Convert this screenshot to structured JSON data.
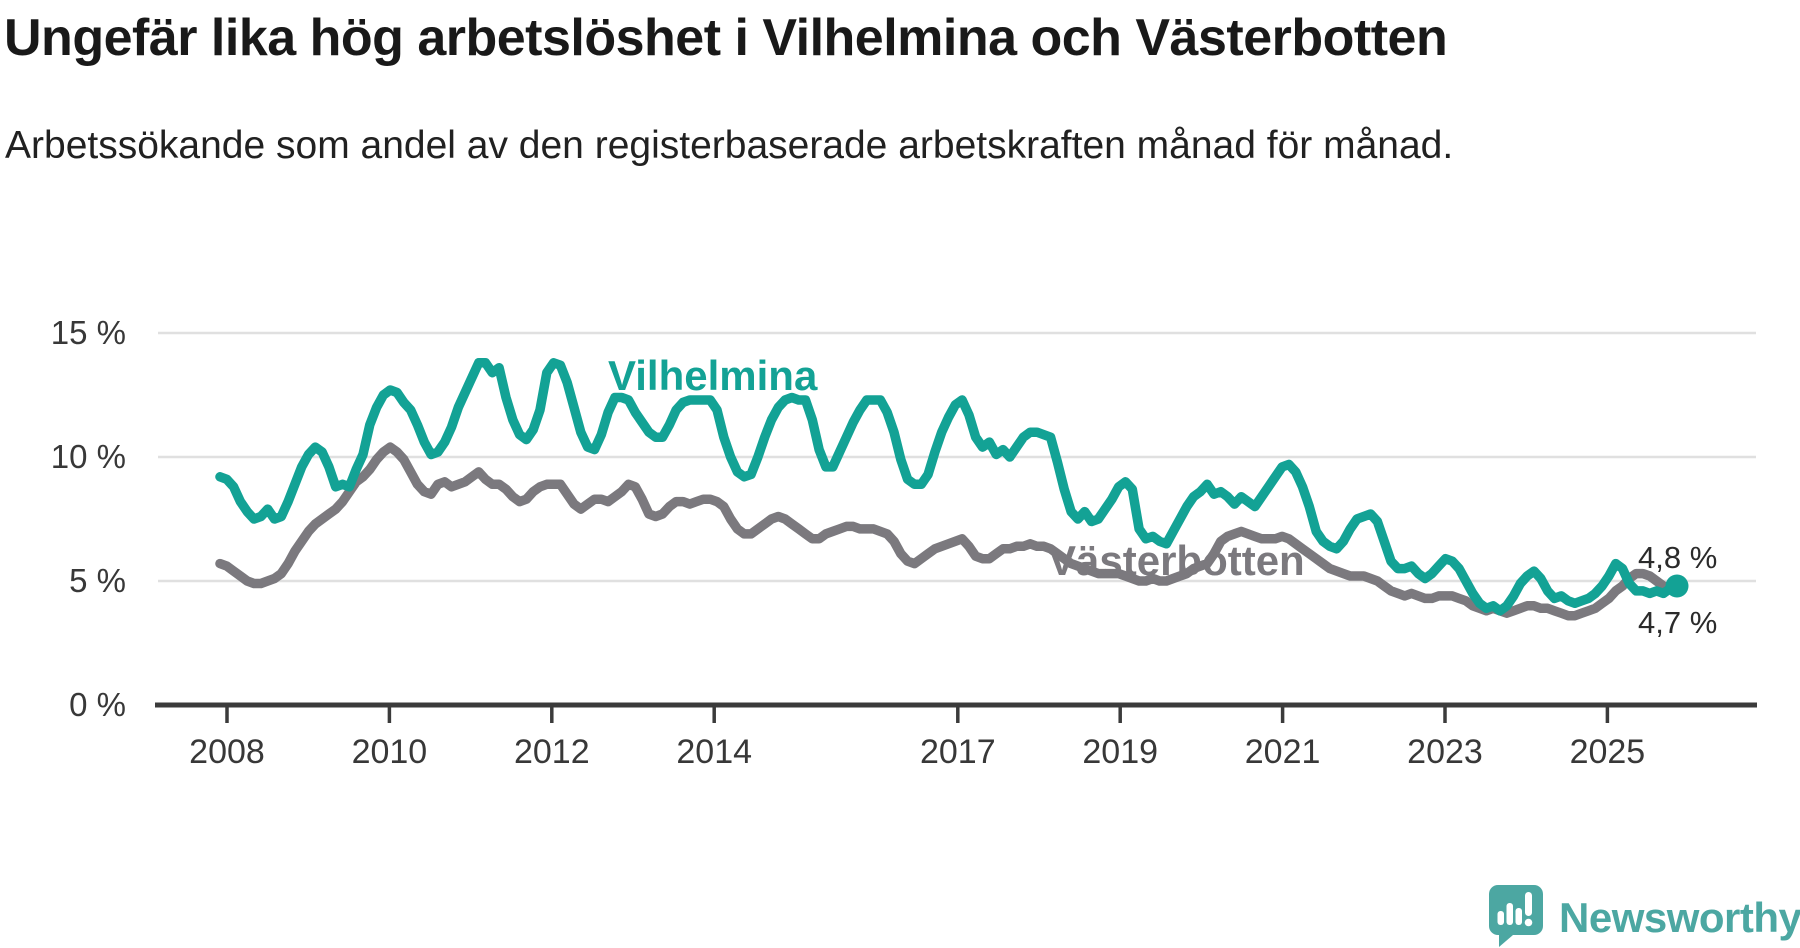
{
  "title": "Ungefär lika hög arbetslöshet i Vilhelmina och Västerbotten",
  "subtitle": "Arbetssökande som andel av den registerbaserade arbetskraften månad för månad.",
  "footer": {
    "brand": "Newsworthy",
    "brand_color": "#4CA7A2"
  },
  "colors": {
    "background": "#ffffff",
    "title_text": "#191919",
    "subtitle_text": "#212121",
    "axis": "#3B3B3B",
    "axis_labels": "#383838",
    "gridline": "#E0E0E0",
    "end_label_text": "#2B2B2B",
    "vilhelmina": "#13A295",
    "vasterbotten": "#7B797E"
  },
  "chart_data": {
    "type": "line",
    "title": "Ungefär lika hög arbetslöshet i Vilhelmina och Västerbotten",
    "xlabel": "",
    "ylabel": "",
    "x_start": "2008-01",
    "x_end": "2025-11",
    "x_frequency": "monthly",
    "x_tick_years": [
      "2008",
      "2010",
      "2012",
      "2014",
      "2017",
      "2019",
      "2021",
      "2023",
      "2025"
    ],
    "y_ticks": [
      {
        "value": 0,
        "label": "0 %"
      },
      {
        "value": 5,
        "label": "5 %"
      },
      {
        "value": 10,
        "label": "10 %"
      },
      {
        "value": 15,
        "label": "15 %"
      }
    ],
    "ylim": [
      0,
      16.6
    ],
    "grid": "horizontal-only",
    "legend_position": "inline-labels",
    "series": [
      {
        "name": "Västerbotten",
        "color": "#7B797E",
        "end_label": "4,7 %",
        "end_value": 4.7,
        "end_dot": false,
        "values": [
          5.7,
          5.6,
          5.4,
          5.2,
          5.0,
          4.9,
          4.9,
          5.0,
          5.1,
          5.3,
          5.7,
          6.2,
          6.6,
          7.0,
          7.3,
          7.5,
          7.7,
          7.9,
          8.2,
          8.6,
          9.0,
          9.2,
          9.5,
          9.9,
          10.2,
          10.4,
          10.2,
          9.9,
          9.4,
          8.9,
          8.6,
          8.5,
          8.9,
          9.0,
          8.8,
          8.9,
          9.0,
          9.2,
          9.4,
          9.1,
          8.9,
          8.9,
          8.7,
          8.4,
          8.2,
          8.3,
          8.6,
          8.8,
          8.9,
          8.9,
          8.9,
          8.5,
          8.1,
          7.9,
          8.1,
          8.3,
          8.3,
          8.2,
          8.4,
          8.6,
          8.9,
          8.8,
          8.3,
          7.7,
          7.6,
          7.7,
          8.0,
          8.2,
          8.2,
          8.1,
          8.2,
          8.3,
          8.3,
          8.2,
          8.0,
          7.5,
          7.1,
          6.9,
          6.9,
          7.1,
          7.3,
          7.5,
          7.6,
          7.5,
          7.3,
          7.1,
          6.9,
          6.7,
          6.7,
          6.9,
          7.0,
          7.1,
          7.2,
          7.2,
          7.1,
          7.1,
          7.1,
          7.0,
          6.9,
          6.6,
          6.1,
          5.8,
          5.7,
          5.9,
          6.1,
          6.3,
          6.4,
          6.5,
          6.6,
          6.7,
          6.4,
          6.0,
          5.9,
          5.9,
          6.1,
          6.3,
          6.3,
          6.4,
          6.4,
          6.5,
          6.4,
          6.4,
          6.3,
          6.1,
          5.9,
          5.7,
          5.6,
          5.5,
          5.4,
          5.3,
          5.3,
          5.3,
          5.3,
          5.2,
          5.1,
          5.0,
          5.0,
          5.1,
          5.0,
          5.0,
          5.1,
          5.2,
          5.3,
          5.5,
          5.6,
          5.7,
          6.1,
          6.6,
          6.8,
          6.9,
          7.0,
          6.9,
          6.8,
          6.7,
          6.7,
          6.7,
          6.8,
          6.7,
          6.5,
          6.3,
          6.1,
          5.9,
          5.7,
          5.5,
          5.4,
          5.3,
          5.2,
          5.2,
          5.2,
          5.1,
          5.0,
          4.8,
          4.6,
          4.5,
          4.4,
          4.5,
          4.4,
          4.3,
          4.3,
          4.4,
          4.4,
          4.4,
          4.3,
          4.2,
          4.0,
          3.9,
          3.8,
          3.9,
          3.8,
          3.7,
          3.8,
          3.9,
          4.0,
          4.0,
          3.9,
          3.9,
          3.8,
          3.7,
          3.6,
          3.6,
          3.7,
          3.8,
          3.9,
          4.1,
          4.3,
          4.6,
          4.8,
          5.1,
          5.3,
          5.3,
          5.2,
          5.0,
          4.8,
          4.7,
          4.7
        ]
      },
      {
        "name": "Vilhelmina",
        "color": "#13A295",
        "end_label": "4,8 %",
        "end_value": 4.8,
        "end_dot": true,
        "values": [
          9.2,
          9.1,
          8.8,
          8.2,
          7.8,
          7.5,
          7.6,
          7.9,
          7.5,
          7.6,
          8.2,
          8.9,
          9.6,
          10.1,
          10.4,
          10.2,
          9.6,
          8.8,
          8.9,
          8.8,
          9.5,
          10.1,
          11.3,
          12.0,
          12.5,
          12.7,
          12.6,
          12.2,
          11.9,
          11.3,
          10.6,
          10.1,
          10.2,
          10.6,
          11.2,
          12.0,
          12.6,
          13.2,
          13.8,
          13.8,
          13.4,
          13.6,
          12.4,
          11.5,
          10.9,
          10.7,
          11.1,
          11.9,
          13.4,
          13.8,
          13.7,
          13.0,
          12.0,
          11.0,
          10.4,
          10.3,
          10.9,
          11.8,
          12.4,
          12.4,
          12.3,
          11.8,
          11.4,
          11.0,
          10.8,
          10.8,
          11.3,
          11.9,
          12.2,
          12.3,
          12.3,
          12.3,
          12.3,
          11.9,
          10.8,
          10.0,
          9.4,
          9.2,
          9.3,
          10.0,
          10.8,
          11.5,
          12.0,
          12.3,
          12.4,
          12.3,
          12.3,
          11.5,
          10.3,
          9.6,
          9.6,
          10.2,
          10.8,
          11.4,
          11.9,
          12.3,
          12.3,
          12.3,
          11.8,
          11.0,
          9.9,
          9.1,
          8.9,
          8.9,
          9.3,
          10.2,
          11.0,
          11.6,
          12.1,
          12.3,
          11.7,
          10.8,
          10.4,
          10.6,
          10.1,
          10.3,
          10.0,
          10.4,
          10.8,
          11.0,
          11.0,
          10.9,
          10.8,
          9.8,
          8.7,
          7.8,
          7.5,
          7.8,
          7.4,
          7.5,
          7.9,
          8.3,
          8.8,
          9.0,
          8.7,
          7.1,
          6.7,
          6.8,
          6.6,
          6.5,
          7.0,
          7.5,
          8.0,
          8.4,
          8.6,
          8.9,
          8.5,
          8.6,
          8.4,
          8.1,
          8.4,
          8.2,
          8.0,
          8.4,
          8.8,
          9.2,
          9.6,
          9.7,
          9.4,
          8.8,
          8.0,
          7.0,
          6.6,
          6.4,
          6.3,
          6.6,
          7.1,
          7.5,
          7.6,
          7.7,
          7.4,
          6.6,
          5.8,
          5.5,
          5.5,
          5.6,
          5.3,
          5.1,
          5.3,
          5.6,
          5.9,
          5.8,
          5.5,
          5.0,
          4.5,
          4.1,
          3.9,
          4.0,
          3.8,
          4.0,
          4.4,
          4.9,
          5.2,
          5.4,
          5.1,
          4.6,
          4.3,
          4.4,
          4.2,
          4.1,
          4.2,
          4.3,
          4.5,
          4.8,
          5.2,
          5.7,
          5.5,
          4.9,
          4.6,
          4.6,
          4.5,
          4.6,
          4.5,
          4.7,
          4.8
        ]
      }
    ]
  }
}
